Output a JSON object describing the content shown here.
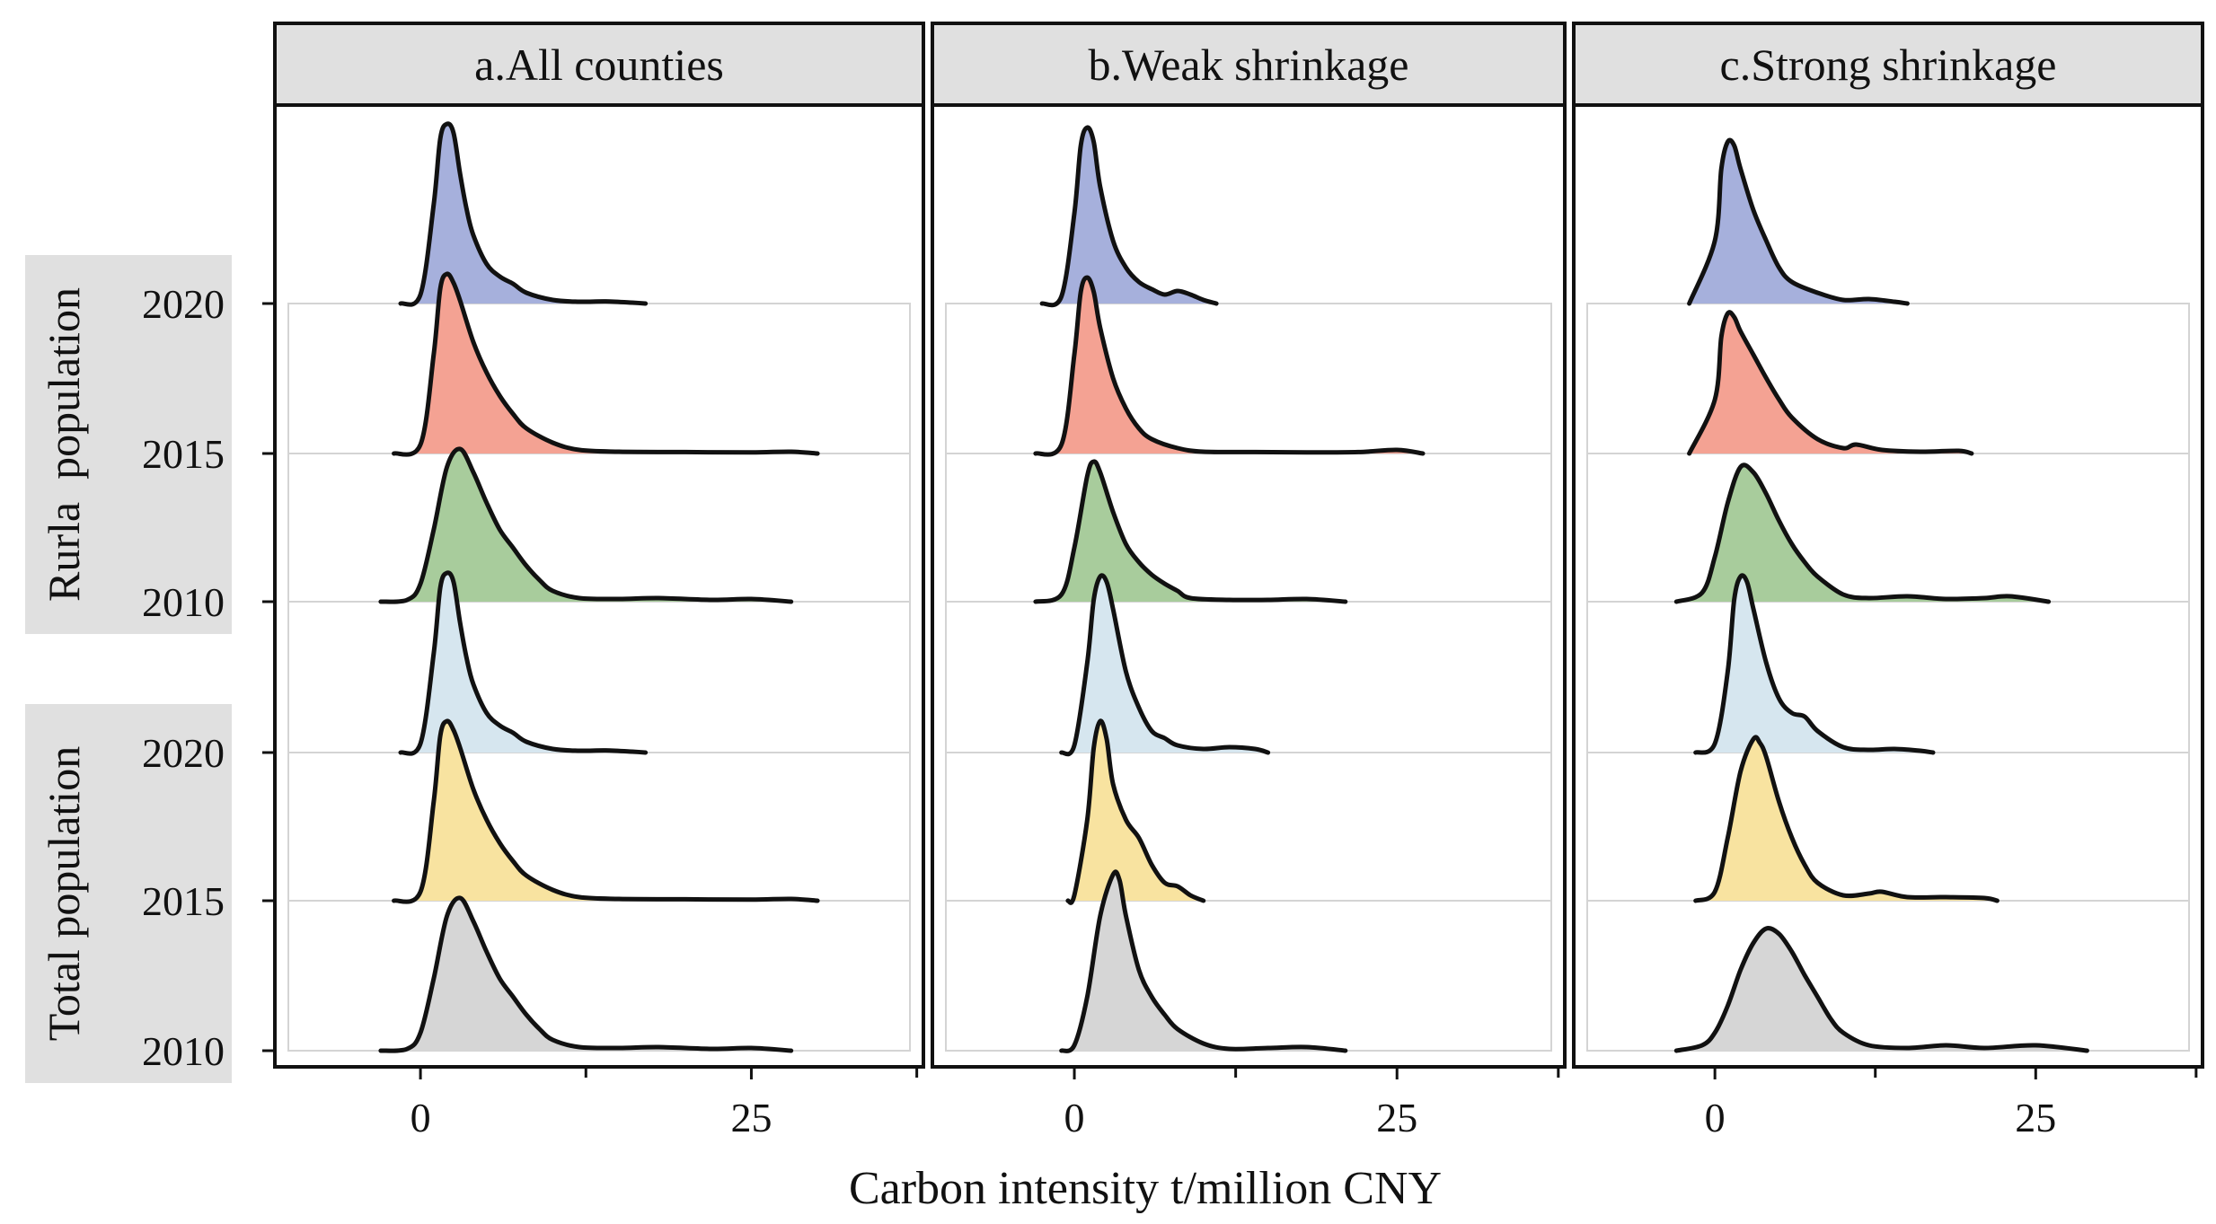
{
  "chart_data": {
    "type": "ridgeline",
    "xlabel": "Carbon intensity t/million CNY",
    "x_ticks": [
      0,
      25
    ],
    "xlim": [
      -11,
      38
    ],
    "row_groups": [
      {
        "label": "Rurla  population",
        "rows": [
          "2020",
          "2015",
          "2010"
        ]
      },
      {
        "label": "Total population",
        "rows": [
          "2020",
          "2015",
          "2010"
        ]
      }
    ],
    "grid": true,
    "panels": [
      {
        "title": "a.All counties",
        "ridges": [
          {
            "group": "Rurla  population",
            "year": "2020",
            "color": "#a6b0dc",
            "x": [
              -1.5,
              0,
              1,
              1.5,
              2,
              2.5,
              3,
              3.5,
              4,
              5,
              6,
              7,
              8,
              10,
              12,
              14,
              16,
              17
            ],
            "y": [
              0,
              0.05,
              0.55,
              0.92,
              1.0,
              0.95,
              0.72,
              0.52,
              0.38,
              0.22,
              0.15,
              0.11,
              0.06,
              0.02,
              0.01,
              0.012,
              0.005,
              0
            ]
          },
          {
            "group": "Rurla  population",
            "year": "2015",
            "color": "#f4a293",
            "x": [
              -2,
              0,
              1,
              1.5,
              2,
              2.5,
              3,
              4,
              5,
              6,
              7,
              8,
              10,
              12,
              15,
              20,
              25,
              28,
              30
            ],
            "y": [
              0,
              0.05,
              0.55,
              0.92,
              1.0,
              0.95,
              0.85,
              0.62,
              0.45,
              0.32,
              0.22,
              0.14,
              0.06,
              0.02,
              0.01,
              0.008,
              0.006,
              0.01,
              0
            ]
          },
          {
            "group": "Rurla  population",
            "year": "2010",
            "color": "#a8cc9c",
            "x": [
              -3,
              -1,
              0,
              1,
              2,
              3,
              4,
              5,
              6,
              7,
              8,
              9,
              10,
              12,
              15,
              18,
              22,
              25,
              28
            ],
            "y": [
              0,
              0.01,
              0.1,
              0.4,
              0.75,
              0.85,
              0.72,
              0.55,
              0.4,
              0.3,
              0.2,
              0.12,
              0.06,
              0.02,
              0.015,
              0.02,
              0.01,
              0.015,
              0
            ]
          },
          {
            "group": "Total population",
            "year": "2020",
            "color": "#d6e6ef",
            "x": [
              -1.5,
              0,
              1,
              1.5,
              2,
              2.5,
              3,
              3.5,
              4,
              5,
              6,
              7,
              8,
              10,
              12,
              14,
              16,
              17
            ],
            "y": [
              0,
              0.05,
              0.55,
              0.92,
              1.0,
              0.95,
              0.72,
              0.52,
              0.38,
              0.22,
              0.15,
              0.11,
              0.06,
              0.02,
              0.01,
              0.012,
              0.005,
              0
            ]
          },
          {
            "group": "Total population",
            "year": "2015",
            "color": "#f8e3a0",
            "x": [
              -2,
              0,
              1,
              1.5,
              2,
              2.5,
              3,
              4,
              5,
              6,
              7,
              8,
              10,
              12,
              15,
              20,
              25,
              28,
              30
            ],
            "y": [
              0,
              0.05,
              0.55,
              0.92,
              1.0,
              0.95,
              0.85,
              0.62,
              0.45,
              0.32,
              0.22,
              0.14,
              0.06,
              0.02,
              0.01,
              0.008,
              0.006,
              0.01,
              0
            ]
          },
          {
            "group": "Total population",
            "year": "2010",
            "color": "#d6d6d6",
            "x": [
              -3,
              -1,
              0,
              1,
              2,
              3,
              4,
              5,
              6,
              7,
              8,
              9,
              10,
              12,
              15,
              18,
              22,
              25,
              28
            ],
            "y": [
              0,
              0.01,
              0.1,
              0.4,
              0.75,
              0.85,
              0.72,
              0.55,
              0.4,
              0.3,
              0.2,
              0.12,
              0.06,
              0.02,
              0.015,
              0.02,
              0.01,
              0.015,
              0
            ]
          }
        ]
      },
      {
        "title": "b.Weak shrinkage",
        "ridges": [
          {
            "group": "Rurla  population",
            "year": "2020",
            "color": "#a6b0dc",
            "x": [
              -2.5,
              -1,
              0,
              0.5,
              1,
              1.5,
              2,
              3,
              4,
              5,
              6,
              7,
              8,
              9,
              10,
              11
            ],
            "y": [
              0,
              0.04,
              0.5,
              0.88,
              0.98,
              0.9,
              0.65,
              0.35,
              0.2,
              0.12,
              0.08,
              0.05,
              0.07,
              0.05,
              0.02,
              0
            ]
          },
          {
            "group": "Rurla  population",
            "year": "2015",
            "color": "#f4a293",
            "x": [
              -3,
              -1,
              0,
              0.5,
              1,
              1.5,
              2,
              3,
              4,
              5,
              6,
              8,
              10,
              14,
              18,
              22,
              25,
              27
            ],
            "y": [
              0,
              0.05,
              0.55,
              0.9,
              0.98,
              0.9,
              0.7,
              0.42,
              0.25,
              0.14,
              0.08,
              0.03,
              0.01,
              0.008,
              0.006,
              0.008,
              0.02,
              0
            ]
          },
          {
            "group": "Rurla  population",
            "year": "2010",
            "color": "#a8cc9c",
            "x": [
              -3,
              -1,
              0,
              1,
              1.5,
              2,
              3,
              4,
              5,
              6,
              7,
              8,
              9,
              12,
              15,
              18,
              21
            ],
            "y": [
              0,
              0.04,
              0.3,
              0.7,
              0.78,
              0.72,
              0.5,
              0.32,
              0.22,
              0.15,
              0.1,
              0.06,
              0.02,
              0.01,
              0.01,
              0.015,
              0
            ]
          },
          {
            "group": "Total population",
            "year": "2020",
            "color": "#d6e6ef",
            "x": [
              -1,
              0,
              1,
              1.5,
              2,
              2.5,
              3,
              4,
              5,
              6,
              7,
              8,
              10,
              12,
              14,
              15
            ],
            "y": [
              0,
              0.04,
              0.5,
              0.85,
              0.98,
              0.95,
              0.8,
              0.45,
              0.25,
              0.12,
              0.08,
              0.04,
              0.02,
              0.03,
              0.02,
              0
            ]
          },
          {
            "group": "Total population",
            "year": "2015",
            "color": "#f8e3a0",
            "x": [
              -0.5,
              0,
              1,
              1.5,
              2,
              2.5,
              3,
              4,
              5,
              6,
              7,
              8,
              9,
              10
            ],
            "y": [
              0,
              0.03,
              0.45,
              0.85,
              1.0,
              0.9,
              0.65,
              0.45,
              0.35,
              0.2,
              0.1,
              0.08,
              0.03,
              0
            ]
          },
          {
            "group": "Total population",
            "year": "2010",
            "color": "#d6d6d6",
            "x": [
              -1,
              0,
              1,
              2,
              3,
              3.5,
              4,
              5,
              6,
              7,
              8,
              10,
              12,
              15,
              18,
              21
            ],
            "y": [
              0,
              0.03,
              0.3,
              0.75,
              0.98,
              0.95,
              0.75,
              0.45,
              0.3,
              0.2,
              0.12,
              0.04,
              0.01,
              0.015,
              0.02,
              0
            ]
          }
        ]
      },
      {
        "title": "c.Strong shrinkage",
        "ridges": [
          {
            "group": "Rurla  population",
            "year": "2020",
            "color": "#a6b0dc",
            "x": [
              -2,
              0,
              0.5,
              1,
              1.5,
              2,
              3,
              4,
              5,
              6,
              8,
              10,
              12,
              14,
              15
            ],
            "y": [
              0,
              0.35,
              0.75,
              0.9,
              0.88,
              0.75,
              0.52,
              0.35,
              0.2,
              0.12,
              0.06,
              0.02,
              0.025,
              0.01,
              0
            ]
          },
          {
            "group": "Rurla  population",
            "year": "2015",
            "color": "#f4a293",
            "x": [
              -2,
              0,
              0.5,
              1,
              1.5,
              2,
              3,
              4,
              5,
              6,
              8,
              10,
              11,
              13,
              16,
              19,
              20
            ],
            "y": [
              0,
              0.3,
              0.65,
              0.78,
              0.76,
              0.68,
              0.55,
              0.42,
              0.3,
              0.2,
              0.08,
              0.03,
              0.05,
              0.02,
              0.01,
              0.015,
              0
            ]
          },
          {
            "group": "Rurla  population",
            "year": "2010",
            "color": "#a8cc9c",
            "x": [
              -3,
              -1,
              0,
              1,
              2,
              3,
              4,
              5,
              6,
              7,
              8,
              10,
              12,
              15,
              18,
              21,
              23,
              26
            ],
            "y": [
              0,
              0.05,
              0.25,
              0.55,
              0.75,
              0.72,
              0.6,
              0.45,
              0.32,
              0.22,
              0.14,
              0.04,
              0.02,
              0.03,
              0.015,
              0.02,
              0.03,
              0
            ]
          },
          {
            "group": "Total population",
            "year": "2020",
            "color": "#d6e6ef",
            "x": [
              -1.5,
              0,
              1,
              1.5,
              2,
              2.5,
              3,
              4,
              5,
              6,
              7,
              8,
              10,
              12,
              14,
              16,
              17
            ],
            "y": [
              0,
              0.05,
              0.45,
              0.85,
              0.98,
              0.95,
              0.8,
              0.5,
              0.3,
              0.22,
              0.2,
              0.12,
              0.03,
              0.015,
              0.02,
              0.01,
              0
            ]
          },
          {
            "group": "Total population",
            "year": "2015",
            "color": "#f8e3a0",
            "x": [
              -1.5,
              0,
              1,
              2,
              3,
              3.5,
              4,
              5,
              6,
              7,
              8,
              10,
              12,
              13,
              15,
              18,
              21,
              22
            ],
            "y": [
              0,
              0.05,
              0.35,
              0.72,
              0.9,
              0.88,
              0.8,
              0.55,
              0.35,
              0.2,
              0.1,
              0.03,
              0.04,
              0.05,
              0.02,
              0.02,
              0.015,
              0
            ]
          },
          {
            "group": "Total population",
            "year": "2010",
            "color": "#d6d6d6",
            "x": [
              -3,
              -1,
              0,
              1,
              2,
              3,
              4,
              5,
              6,
              7,
              8,
              9,
              10,
              12,
              15,
              18,
              21,
              25,
              29
            ],
            "y": [
              0,
              0.03,
              0.1,
              0.25,
              0.45,
              0.6,
              0.68,
              0.65,
              0.55,
              0.42,
              0.3,
              0.18,
              0.1,
              0.03,
              0.015,
              0.03,
              0.015,
              0.03,
              0
            ]
          }
        ]
      }
    ]
  }
}
